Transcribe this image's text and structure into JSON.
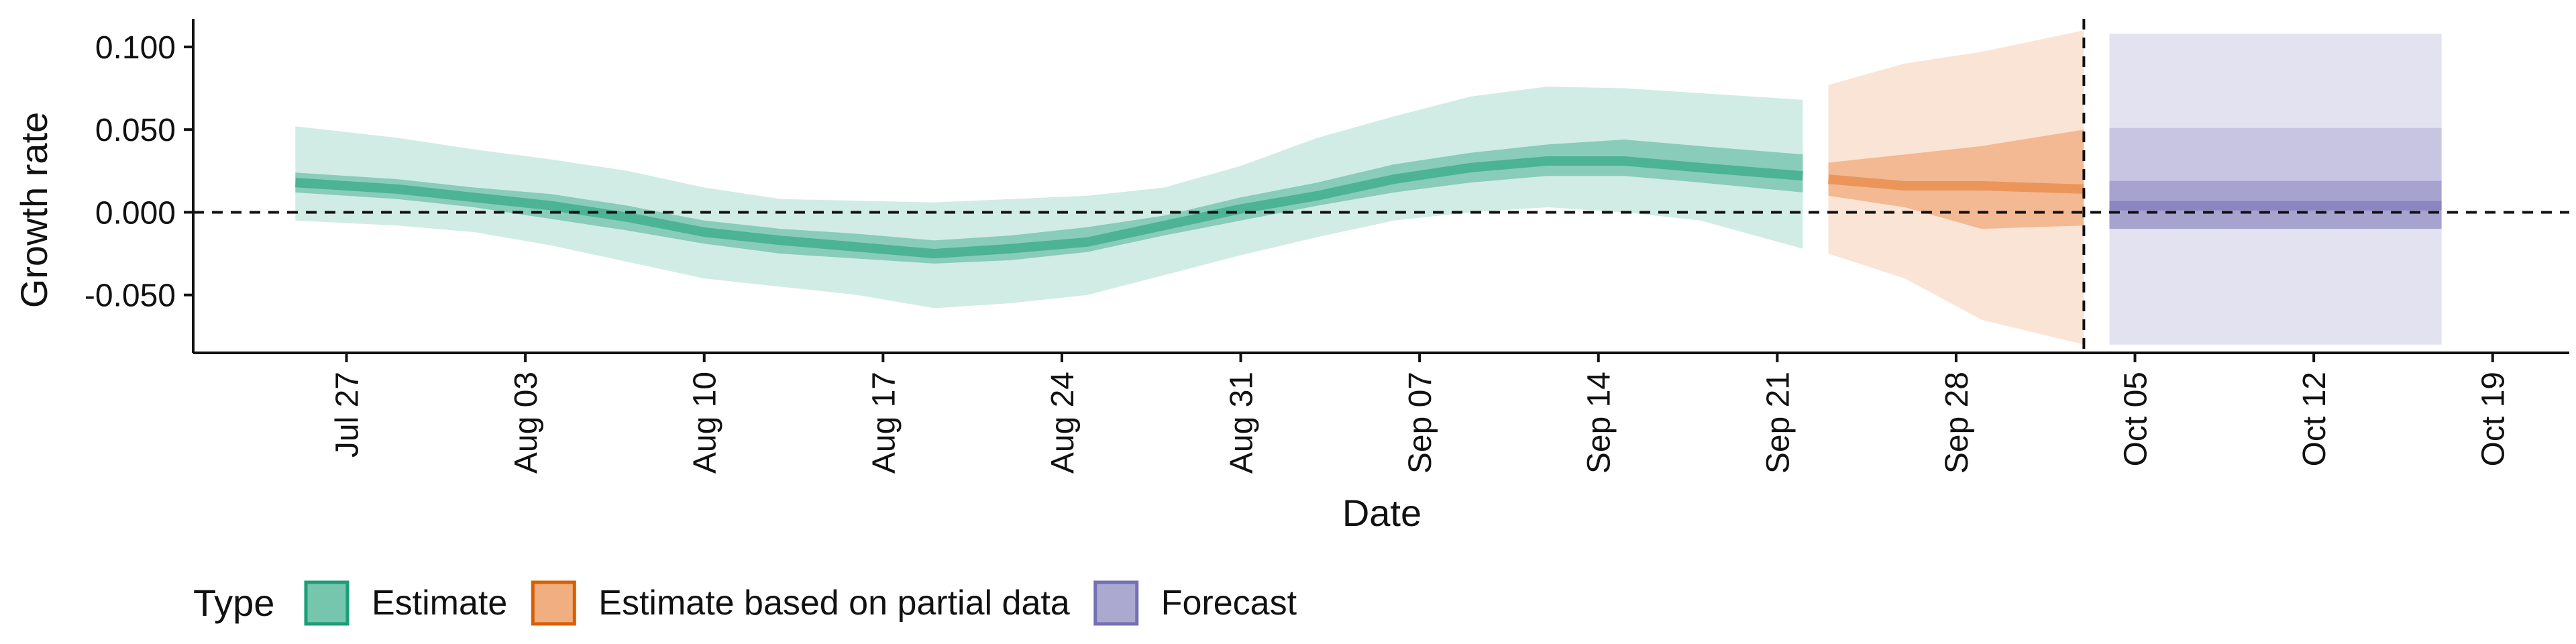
{
  "chart_data": {
    "type": "area",
    "xlabel": "Date",
    "ylabel": "Growth rate",
    "ylim": [
      -0.085,
      0.117
    ],
    "y_ticks": [
      {
        "value": 0.1,
        "label": "0.100"
      },
      {
        "value": 0.05,
        "label": "0.050"
      },
      {
        "value": 0.0,
        "label": "0.000"
      },
      {
        "value": -0.05,
        "label": "-0.050"
      }
    ],
    "xlim": [
      "2020-07-21",
      "2020-10-22"
    ],
    "x_ticks": [
      {
        "date": "2020-07-27",
        "label": "Jul 27"
      },
      {
        "date": "2020-08-03",
        "label": "Aug 03"
      },
      {
        "date": "2020-08-10",
        "label": "Aug 10"
      },
      {
        "date": "2020-08-17",
        "label": "Aug 17"
      },
      {
        "date": "2020-08-24",
        "label": "Aug 24"
      },
      {
        "date": "2020-08-31",
        "label": "Aug 31"
      },
      {
        "date": "2020-09-07",
        "label": "Sep 07"
      },
      {
        "date": "2020-09-14",
        "label": "Sep 14"
      },
      {
        "date": "2020-09-21",
        "label": "Sep 21"
      },
      {
        "date": "2020-09-28",
        "label": "Sep 28"
      },
      {
        "date": "2020-10-05",
        "label": "Oct 05"
      },
      {
        "date": "2020-10-12",
        "label": "Oct 12"
      },
      {
        "date": "2020-10-19",
        "label": "Oct 19"
      }
    ],
    "reference_lines": {
      "horizontal_y": 0.0,
      "vertical_date": "2020-10-03"
    },
    "legend": {
      "title": "Type",
      "position": "bottom",
      "entries": [
        "Estimate",
        "Estimate based on partial data",
        "Forecast"
      ]
    },
    "colors": {
      "Estimate": {
        "fill": "#1b9e77",
        "border": "#1b9e77"
      },
      "Estimate based on partial data": {
        "fill": "#e7782d",
        "border": "#d95f02"
      },
      "Forecast": {
        "fill": "#7570b3",
        "border": "#7570b3"
      }
    },
    "series": [
      {
        "name": "Estimate",
        "dates": [
          "2020-07-25",
          "2020-07-29",
          "2020-08-01",
          "2020-08-04",
          "2020-08-07",
          "2020-08-10",
          "2020-08-13",
          "2020-08-16",
          "2020-08-19",
          "2020-08-22",
          "2020-08-25",
          "2020-08-28",
          "2020-08-31",
          "2020-09-03",
          "2020-09-06",
          "2020-09-09",
          "2020-09-12",
          "2020-09-15",
          "2020-09-18",
          "2020-09-22"
        ],
        "median": [
          0.018,
          0.014,
          0.009,
          0.004,
          -0.003,
          -0.012,
          -0.017,
          -0.021,
          -0.025,
          -0.022,
          -0.018,
          -0.008,
          0.002,
          0.01,
          0.02,
          0.027,
          0.031,
          0.031,
          0.027,
          0.022
        ],
        "lower50": [
          0.012,
          0.008,
          0.003,
          -0.004,
          -0.011,
          -0.019,
          -0.025,
          -0.028,
          -0.031,
          -0.029,
          -0.024,
          -0.014,
          -0.005,
          0.004,
          0.012,
          0.018,
          0.022,
          0.022,
          0.018,
          0.012
        ],
        "upper50": [
          0.024,
          0.02,
          0.015,
          0.011,
          0.004,
          -0.005,
          -0.01,
          -0.013,
          -0.017,
          -0.014,
          -0.009,
          -0.002,
          0.009,
          0.018,
          0.029,
          0.036,
          0.041,
          0.044,
          0.04,
          0.035
        ],
        "lower90": [
          -0.005,
          -0.008,
          -0.012,
          -0.02,
          -0.03,
          -0.04,
          -0.045,
          -0.05,
          -0.058,
          -0.055,
          -0.05,
          -0.038,
          -0.026,
          -0.015,
          -0.005,
          0.0,
          0.003,
          0.0,
          -0.005,
          -0.022
        ],
        "upper90": [
          0.052,
          0.045,
          0.038,
          0.032,
          0.025,
          0.015,
          0.008,
          0.007,
          0.006,
          0.008,
          0.01,
          0.015,
          0.028,
          0.045,
          0.058,
          0.07,
          0.076,
          0.075,
          0.072,
          0.068
        ]
      },
      {
        "name": "Estimate based on partial data",
        "dates": [
          "2020-09-23",
          "2020-09-26",
          "2020-09-29",
          "2020-10-03"
        ],
        "median": [
          0.02,
          0.016,
          0.016,
          0.014
        ],
        "lower50": [
          0.01,
          0.003,
          -0.01,
          -0.008
        ],
        "upper50": [
          0.03,
          0.035,
          0.04,
          0.05
        ],
        "lower90": [
          -0.025,
          -0.04,
          -0.065,
          -0.08
        ],
        "upper90": [
          0.077,
          0.09,
          0.097,
          0.11
        ]
      },
      {
        "name": "Forecast",
        "dates": [
          "2020-10-04",
          "2020-10-17"
        ],
        "median": [
          0.004,
          0.004
        ],
        "lower50": [
          -0.01,
          -0.01
        ],
        "upper50": [
          0.019,
          0.019
        ],
        "lower90": [
          -0.08,
          -0.08
        ],
        "upper90": [
          0.108,
          0.108
        ],
        "upper75": [
          0.051,
          0.051
        ]
      }
    ]
  }
}
